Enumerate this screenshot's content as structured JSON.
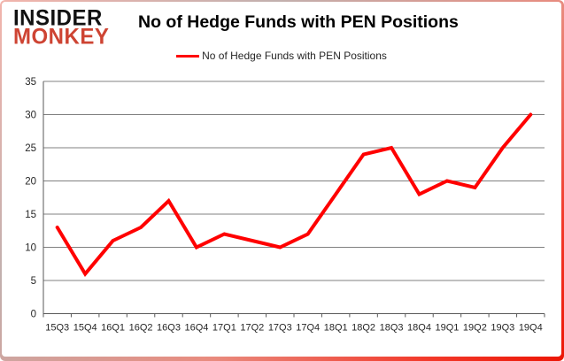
{
  "brand": {
    "line1": "INSIDER",
    "line2": "MONKEY"
  },
  "header": {
    "title": "No of Hedge Funds with PEN Positions"
  },
  "legend": {
    "label": "No of Hedge Funds with PEN Positions",
    "line_color": "#ff0000"
  },
  "chart_data": {
    "type": "line",
    "title": "No of Hedge Funds with PEN Positions",
    "series_name": "No of Hedge Funds with PEN Positions",
    "categories": [
      "15Q3",
      "15Q4",
      "16Q1",
      "16Q2",
      "16Q3",
      "16Q4",
      "17Q1",
      "17Q2",
      "17Q3",
      "17Q4",
      "18Q1",
      "18Q2",
      "18Q3",
      "18Q4",
      "19Q1",
      "19Q2",
      "19Q3",
      "19Q4"
    ],
    "values": [
      13,
      6,
      11,
      13,
      17,
      10,
      12,
      11,
      10,
      12,
      18,
      24,
      25,
      18,
      20,
      19,
      25,
      30
    ],
    "xlabel": "",
    "ylabel": "",
    "ylim": [
      0,
      35
    ],
    "yticks": [
      0,
      5,
      10,
      15,
      20,
      25,
      30,
      35
    ],
    "grid": true,
    "legend_position": "top",
    "line_color": "#ff0000",
    "grid_color": "#808080",
    "axis_color": "#595959",
    "label_color": "#262626"
  }
}
